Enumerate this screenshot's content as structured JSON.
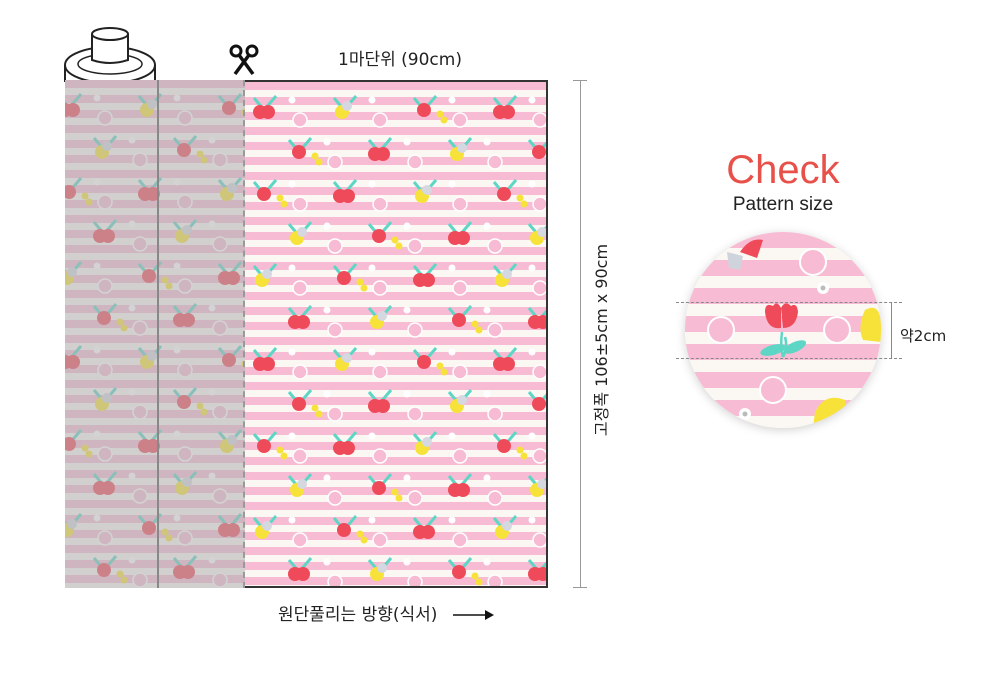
{
  "header": {
    "unit_label": "1마단위 (90cm)"
  },
  "dimension": {
    "width_label": "고정폭 106±5cm x 90cm"
  },
  "footer": {
    "direction_label": "원단풀리는 방향(식서)",
    "arrow_icon": "arrow-right-icon"
  },
  "pattern_check": {
    "title": "Check",
    "subtitle": "Pattern size",
    "repeat_label": "약2cm"
  },
  "colors": {
    "accent": "#e8504a",
    "stripe_pink": "#f7bcd3",
    "tulip_red": "#ef4a5a",
    "flower_yellow": "#f7e23a",
    "leaf_teal": "#5ed6c6"
  },
  "icons": {
    "scissors": "scissors-icon"
  }
}
